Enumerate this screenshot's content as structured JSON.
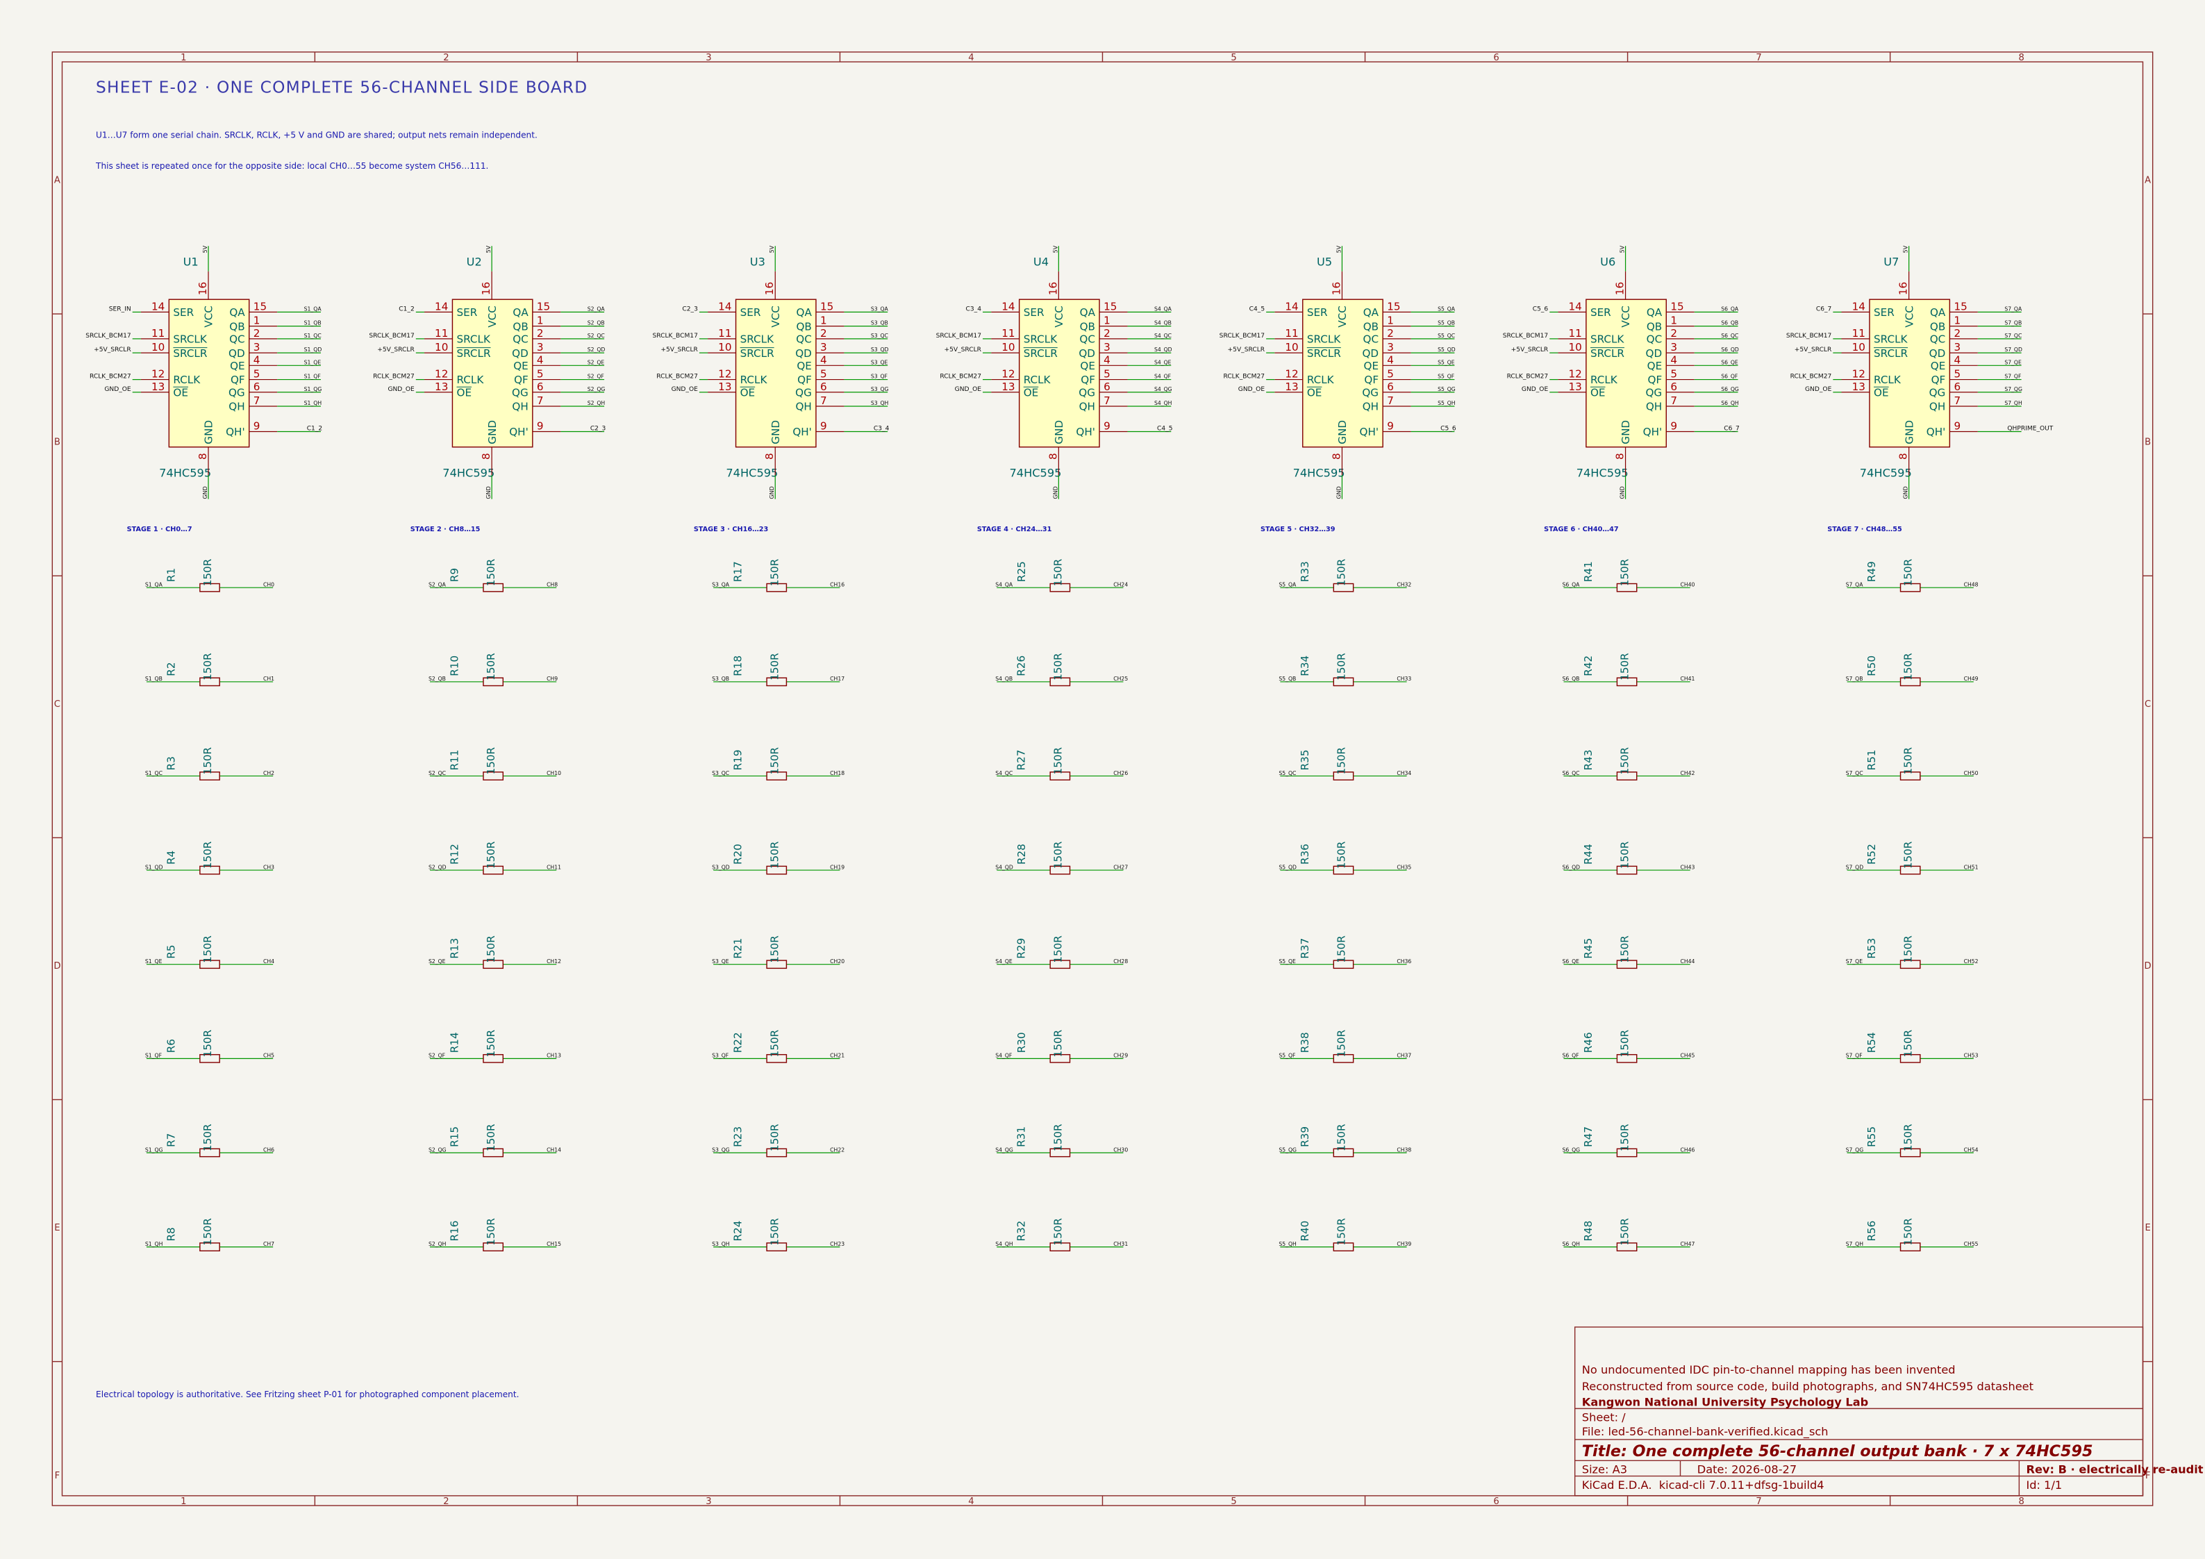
{
  "frame": {
    "columns": [
      "1",
      "2",
      "3",
      "4",
      "5",
      "6",
      "7",
      "8"
    ],
    "rows": [
      "A",
      "B",
      "C",
      "D",
      "E",
      "F"
    ]
  },
  "header": {
    "title": "SHEET E-02 · ONE COMPLETE 56-CHANNEL SIDE BOARD",
    "notes": [
      "U1…U7 form one serial chain. SRCLK, RCLK, +5 V and GND are shared; output nets remain independent.",
      "This sheet is repeated once for the opposite side: local CH0…55 become system CH56…111."
    ],
    "footer_note": "Electrical topology is authoritative. See Fritzing sheet P-01 for photographed component placement."
  },
  "symbol": {
    "value": "74HC595",
    "left_pins": [
      {
        "name": "SER",
        "number": "14"
      },
      {
        "name": "SRCLK",
        "number": "11"
      },
      {
        "name": "SRCLR",
        "number": "10"
      },
      {
        "name": "RCLK",
        "number": "12"
      },
      {
        "name": "OE",
        "number": "13"
      }
    ],
    "right_pins": [
      {
        "name": "QA",
        "number": "15"
      },
      {
        "name": "QB",
        "number": "1"
      },
      {
        "name": "QC",
        "number": "2"
      },
      {
        "name": "QD",
        "number": "3"
      },
      {
        "name": "QE",
        "number": "4"
      },
      {
        "name": "QF",
        "number": "5"
      },
      {
        "name": "QG",
        "number": "6"
      },
      {
        "name": "QH",
        "number": "7"
      },
      {
        "name": "QH'",
        "number": "9"
      }
    ],
    "power_pins": [
      {
        "name": "VCC",
        "number": "16"
      },
      {
        "name": "GND",
        "number": "8"
      }
    ],
    "power_nets": [
      "5V",
      "GND"
    ],
    "shared_inputs": [
      "SRCLK_BCM17",
      "+5V_SRCLR",
      "RCLK_BCM27",
      "GND_OE"
    ]
  },
  "resistor_value": "150R",
  "chips": [
    {
      "ref": "U1",
      "stage": "STAGE 1 · CH0…7",
      "serial_in": "SER_IN",
      "serial_out": "C1_2",
      "outputs": [
        "S1_QA",
        "S1_QB",
        "S1_QC",
        "S1_QD",
        "S1_QE",
        "S1_QF",
        "S1_QG",
        "S1_QH"
      ],
      "resistors": [
        {
          "ref": "R1",
          "channel": "CH0"
        },
        {
          "ref": "R2",
          "channel": "CH1"
        },
        {
          "ref": "R3",
          "channel": "CH2"
        },
        {
          "ref": "R4",
          "channel": "CH3"
        },
        {
          "ref": "R5",
          "channel": "CH4"
        },
        {
          "ref": "R6",
          "channel": "CH5"
        },
        {
          "ref": "R7",
          "channel": "CH6"
        },
        {
          "ref": "R8",
          "channel": "CH7"
        }
      ]
    },
    {
      "ref": "U2",
      "stage": "STAGE 2 · CH8…15",
      "serial_in": "C1_2",
      "serial_out": "C2_3",
      "outputs": [
        "S2_QA",
        "S2_QB",
        "S2_QC",
        "S2_QD",
        "S2_QE",
        "S2_QF",
        "S2_QG",
        "S2_QH"
      ],
      "resistors": [
        {
          "ref": "R9",
          "channel": "CH8"
        },
        {
          "ref": "R10",
          "channel": "CH9"
        },
        {
          "ref": "R11",
          "channel": "CH10"
        },
        {
          "ref": "R12",
          "channel": "CH11"
        },
        {
          "ref": "R13",
          "channel": "CH12"
        },
        {
          "ref": "R14",
          "channel": "CH13"
        },
        {
          "ref": "R15",
          "channel": "CH14"
        },
        {
          "ref": "R16",
          "channel": "CH15"
        }
      ]
    },
    {
      "ref": "U3",
      "stage": "STAGE 3 · CH16…23",
      "serial_in": "C2_3",
      "serial_out": "C3_4",
      "outputs": [
        "S3_QA",
        "S3_QB",
        "S3_QC",
        "S3_QD",
        "S3_QE",
        "S3_QF",
        "S3_QG",
        "S3_QH"
      ],
      "resistors": [
        {
          "ref": "R17",
          "channel": "CH16"
        },
        {
          "ref": "R18",
          "channel": "CH17"
        },
        {
          "ref": "R19",
          "channel": "CH18"
        },
        {
          "ref": "R20",
          "channel": "CH19"
        },
        {
          "ref": "R21",
          "channel": "CH20"
        },
        {
          "ref": "R22",
          "channel": "CH21"
        },
        {
          "ref": "R23",
          "channel": "CH22"
        },
        {
          "ref": "R24",
          "channel": "CH23"
        }
      ]
    },
    {
      "ref": "U4",
      "stage": "STAGE 4 · CH24…31",
      "serial_in": "C3_4",
      "serial_out": "C4_5",
      "outputs": [
        "S4_QA",
        "S4_QB",
        "S4_QC",
        "S4_QD",
        "S4_QE",
        "S4_QF",
        "S4_QG",
        "S4_QH"
      ],
      "resistors": [
        {
          "ref": "R25",
          "channel": "CH24"
        },
        {
          "ref": "R26",
          "channel": "CH25"
        },
        {
          "ref": "R27",
          "channel": "CH26"
        },
        {
          "ref": "R28",
          "channel": "CH27"
        },
        {
          "ref": "R29",
          "channel": "CH28"
        },
        {
          "ref": "R30",
          "channel": "CH29"
        },
        {
          "ref": "R31",
          "channel": "CH30"
        },
        {
          "ref": "R32",
          "channel": "CH31"
        }
      ]
    },
    {
      "ref": "U5",
      "stage": "STAGE 5 · CH32…39",
      "serial_in": "C4_5",
      "serial_out": "C5_6",
      "outputs": [
        "S5_QA",
        "S5_QB",
        "S5_QC",
        "S5_QD",
        "S5_QE",
        "S5_QF",
        "S5_QG",
        "S5_QH"
      ],
      "resistors": [
        {
          "ref": "R33",
          "channel": "CH32"
        },
        {
          "ref": "R34",
          "channel": "CH33"
        },
        {
          "ref": "R35",
          "channel": "CH34"
        },
        {
          "ref": "R36",
          "channel": "CH35"
        },
        {
          "ref": "R37",
          "channel": "CH36"
        },
        {
          "ref": "R38",
          "channel": "CH37"
        },
        {
          "ref": "R39",
          "channel": "CH38"
        },
        {
          "ref": "R40",
          "channel": "CH39"
        }
      ]
    },
    {
      "ref": "U6",
      "stage": "STAGE 6 · CH40…47",
      "serial_in": "C5_6",
      "serial_out": "C6_7",
      "outputs": [
        "S6_QA",
        "S6_QB",
        "S6_QC",
        "S6_QD",
        "S6_QE",
        "S6_QF",
        "S6_QG",
        "S6_QH"
      ],
      "resistors": [
        {
          "ref": "R41",
          "channel": "CH40"
        },
        {
          "ref": "R42",
          "channel": "CH41"
        },
        {
          "ref": "R43",
          "channel": "CH42"
        },
        {
          "ref": "R44",
          "channel": "CH43"
        },
        {
          "ref": "R45",
          "channel": "CH44"
        },
        {
          "ref": "R46",
          "channel": "CH45"
        },
        {
          "ref": "R47",
          "channel": "CH46"
        },
        {
          "ref": "R48",
          "channel": "CH47"
        }
      ]
    },
    {
      "ref": "U7",
      "stage": "STAGE 7 · CH48…55",
      "serial_in": "C6_7",
      "serial_out": "QHPRIME_OUT",
      "outputs": [
        "S7_QA",
        "S7_QB",
        "S7_QC",
        "S7_QD",
        "S7_QE",
        "S7_QF",
        "S7_QG",
        "S7_QH"
      ],
      "resistors": [
        {
          "ref": "R49",
          "channel": "CH48"
        },
        {
          "ref": "R50",
          "channel": "CH49"
        },
        {
          "ref": "R51",
          "channel": "CH50"
        },
        {
          "ref": "R52",
          "channel": "CH51"
        },
        {
          "ref": "R53",
          "channel": "CH52"
        },
        {
          "ref": "R54",
          "channel": "CH53"
        },
        {
          "ref": "R55",
          "channel": "CH54"
        },
        {
          "ref": "R56",
          "channel": "CH55"
        }
      ]
    }
  ],
  "title_block": {
    "comments": [
      "No undocumented IDC pin-to-channel mapping has been invented",
      "Reconstructed from source code, build photographs, and SN74HC595 datasheet"
    ],
    "company": "Kangwon National University Psychology Lab",
    "sheet": "Sheet: /",
    "file": "File: led-56-channel-bank-verified.kicad_sch",
    "title": "Title: One complete 56-channel output bank · 7 x 74HC595",
    "size": "Size: A3",
    "date": "Date: 2026-08-27",
    "rev": "Rev: B · electrically re-audit",
    "tool": "KiCad E.D.A.  kicad-cli 7.0.11+dfsg-1build4",
    "id": "Id: 1/1"
  }
}
